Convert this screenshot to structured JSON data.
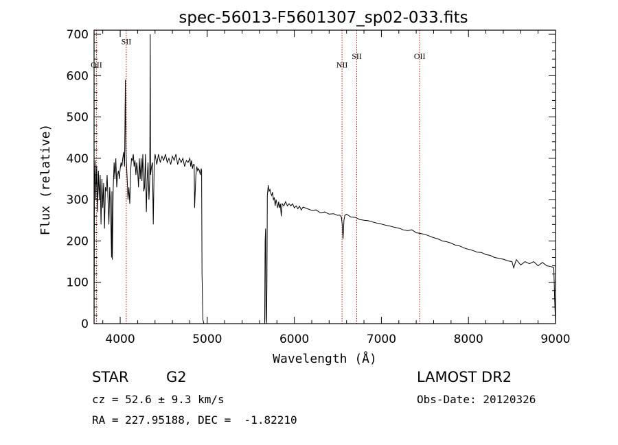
{
  "chart_data": {
    "type": "line",
    "title": "spec-56013-F5601307_sp02-033.fits",
    "xlabel": "Wavelength (Å)",
    "ylabel": "Flux (relative)",
    "xlim": [
      3700,
      9000
    ],
    "ylim": [
      0,
      710
    ],
    "x_ticks": [
      4000,
      5000,
      6000,
      7000,
      8000,
      9000
    ],
    "y_ticks": [
      0,
      100,
      200,
      300,
      400,
      500,
      600,
      700
    ],
    "grid": false,
    "series": [
      {
        "color": "#000000",
        "points": [
          [
            3700,
            0
          ],
          [
            3705,
            330
          ],
          [
            3712,
            395
          ],
          [
            3720,
            300
          ],
          [
            3730,
            380
          ],
          [
            3740,
            270
          ],
          [
            3750,
            370
          ],
          [
            3760,
            300
          ],
          [
            3770,
            360
          ],
          [
            3780,
            240
          ],
          [
            3790,
            350
          ],
          [
            3800,
            280
          ],
          [
            3810,
            340
          ],
          [
            3820,
            230
          ],
          [
            3830,
            330
          ],
          [
            3840,
            320
          ],
          [
            3850,
            360
          ],
          [
            3860,
            300
          ],
          [
            3870,
            240
          ],
          [
            3880,
            330
          ],
          [
            3890,
            280
          ],
          [
            3900,
            160
          ],
          [
            3905,
            320
          ],
          [
            3910,
            155
          ],
          [
            3920,
            330
          ],
          [
            3930,
            390
          ],
          [
            3940,
            350
          ],
          [
            3950,
            400
          ],
          [
            3960,
            330
          ],
          [
            3970,
            360
          ],
          [
            3980,
            370
          ],
          [
            3990,
            350
          ],
          [
            4000,
            375
          ],
          [
            4010,
            390
          ],
          [
            4020,
            380
          ],
          [
            4030,
            400
          ],
          [
            4040,
            415
          ],
          [
            4050,
            380
          ],
          [
            4060,
            590
          ],
          [
            4065,
            420
          ],
          [
            4070,
            400
          ],
          [
            4080,
            350
          ],
          [
            4090,
            300
          ],
          [
            4100,
            330
          ],
          [
            4110,
            290
          ],
          [
            4120,
            370
          ],
          [
            4130,
            400
          ],
          [
            4140,
            395
          ],
          [
            4150,
            410
          ],
          [
            4160,
            380
          ],
          [
            4170,
            395
          ],
          [
            4180,
            360
          ],
          [
            4190,
            390
          ],
          [
            4200,
            370
          ],
          [
            4210,
            330
          ],
          [
            4220,
            400
          ],
          [
            4230,
            350
          ],
          [
            4240,
            400
          ],
          [
            4250,
            345
          ],
          [
            4260,
            410
          ],
          [
            4270,
            320
          ],
          [
            4280,
            330
          ],
          [
            4290,
            410
          ],
          [
            4300,
            270
          ],
          [
            4310,
            350
          ],
          [
            4320,
            390
          ],
          [
            4330,
            300
          ],
          [
            4340,
            350
          ],
          [
            4345,
            700
          ],
          [
            4348,
            360
          ],
          [
            4360,
            380
          ],
          [
            4370,
            390
          ],
          [
            4380,
            240
          ],
          [
            4390,
            380
          ],
          [
            4400,
            410
          ],
          [
            4420,
            385
          ],
          [
            4440,
            410
          ],
          [
            4460,
            390
          ],
          [
            4480,
            405
          ],
          [
            4500,
            395
          ],
          [
            4520,
            410
          ],
          [
            4540,
            390
          ],
          [
            4560,
            400
          ],
          [
            4580,
            385
          ],
          [
            4600,
            405
          ],
          [
            4620,
            395
          ],
          [
            4640,
            410
          ],
          [
            4660,
            385
          ],
          [
            4680,
            400
          ],
          [
            4700,
            390
          ],
          [
            4720,
            400
          ],
          [
            4740,
            380
          ],
          [
            4760,
            395
          ],
          [
            4780,
            390
          ],
          [
            4800,
            400
          ],
          [
            4810,
            380
          ],
          [
            4820,
            395
          ],
          [
            4830,
            375
          ],
          [
            4840,
            385
          ],
          [
            4850,
            385
          ],
          [
            4855,
            280
          ],
          [
            4860,
            310
          ],
          [
            4870,
            360
          ],
          [
            4880,
            380
          ],
          [
            4890,
            370
          ],
          [
            4900,
            375
          ],
          [
            4910,
            370
          ],
          [
            4920,
            360
          ],
          [
            4930,
            375
          ],
          [
            4935,
            370
          ],
          [
            4940,
            120
          ],
          [
            4950,
            10
          ],
          [
            4960,
            0
          ],
          [
            5660,
            0
          ],
          [
            5665,
            200
          ],
          [
            5670,
            230
          ],
          [
            5675,
            10
          ],
          [
            5680,
            0
          ],
          [
            5685,
            90
          ],
          [
            5690,
            310
          ],
          [
            5700,
            335
          ],
          [
            5710,
            320
          ],
          [
            5720,
            325
          ],
          [
            5730,
            315
          ],
          [
            5740,
            310
          ],
          [
            5750,
            318
          ],
          [
            5760,
            300
          ],
          [
            5770,
            305
          ],
          [
            5780,
            285
          ],
          [
            5790,
            300
          ],
          [
            5800,
            290
          ],
          [
            5810,
            280
          ],
          [
            5820,
            295
          ],
          [
            5830,
            280
          ],
          [
            5840,
            290
          ],
          [
            5850,
            260
          ],
          [
            5860,
            290
          ],
          [
            5880,
            285
          ],
          [
            5900,
            295
          ],
          [
            5920,
            285
          ],
          [
            5940,
            290
          ],
          [
            5960,
            285
          ],
          [
            5980,
            290
          ],
          [
            6000,
            280
          ],
          [
            6020,
            285
          ],
          [
            6040,
            278
          ],
          [
            6060,
            284
          ],
          [
            6080,
            275
          ],
          [
            6100,
            282
          ],
          [
            6150,
            278
          ],
          [
            6200,
            274
          ],
          [
            6250,
            275
          ],
          [
            6300,
            268
          ],
          [
            6350,
            270
          ],
          [
            6400,
            265
          ],
          [
            6450,
            266
          ],
          [
            6500,
            262
          ],
          [
            6520,
            263
          ],
          [
            6540,
            258
          ],
          [
            6550,
            240
          ],
          [
            6560,
            205
          ],
          [
            6570,
            250
          ],
          [
            6580,
            262
          ],
          [
            6600,
            265
          ],
          [
            6650,
            258
          ],
          [
            6700,
            257
          ],
          [
            6750,
            252
          ],
          [
            6800,
            250
          ],
          [
            6850,
            249
          ],
          [
            6900,
            246
          ],
          [
            6950,
            243
          ],
          [
            7000,
            241
          ],
          [
            7050,
            238
          ],
          [
            7100,
            236
          ],
          [
            7150,
            233
          ],
          [
            7200,
            231
          ],
          [
            7250,
            227
          ],
          [
            7300,
            225
          ],
          [
            7350,
            227
          ],
          [
            7400,
            220
          ],
          [
            7450,
            218
          ],
          [
            7500,
            216
          ],
          [
            7550,
            212
          ],
          [
            7600,
            208
          ],
          [
            7650,
            205
          ],
          [
            7700,
            200
          ],
          [
            7750,
            198
          ],
          [
            7800,
            195
          ],
          [
            7850,
            190
          ],
          [
            7900,
            188
          ],
          [
            7950,
            183
          ],
          [
            8000,
            180
          ],
          [
            8050,
            177
          ],
          [
            8100,
            173
          ],
          [
            8150,
            172
          ],
          [
            8200,
            167
          ],
          [
            8250,
            165
          ],
          [
            8300,
            160
          ],
          [
            8350,
            158
          ],
          [
            8400,
            156
          ],
          [
            8450,
            152
          ],
          [
            8500,
            150
          ],
          [
            8520,
            135
          ],
          [
            8550,
            155
          ],
          [
            8600,
            142
          ],
          [
            8650,
            150
          ],
          [
            8700,
            145
          ],
          [
            8750,
            150
          ],
          [
            8800,
            140
          ],
          [
            8850,
            148
          ],
          [
            8900,
            140
          ],
          [
            8950,
            138
          ],
          [
            8980,
            135
          ],
          [
            8990,
            60
          ],
          [
            9000,
            0
          ]
        ]
      }
    ],
    "spectral_lines": [
      {
        "label": "OII",
        "x": 3727,
        "label_y": 620
      },
      {
        "label": "SII",
        "x": 4070,
        "label_y": 676
      },
      {
        "label": "NII",
        "x": 6548,
        "label_y": 620
      },
      {
        "label": "SII",
        "x": 6717,
        "label_y": 640
      },
      {
        "label": "OII",
        "x": 7440,
        "label_y": 640
      }
    ],
    "line_color": "#cc0000"
  },
  "info": {
    "object_class": "STAR",
    "subclass": "G2",
    "survey": "LAMOST DR2",
    "cz": "cz = 52.6 ± 9.3 km/s",
    "obs_date": "Obs-Date: 20120326",
    "coords": "RA = 227.95188, DEC =  -1.82210"
  }
}
